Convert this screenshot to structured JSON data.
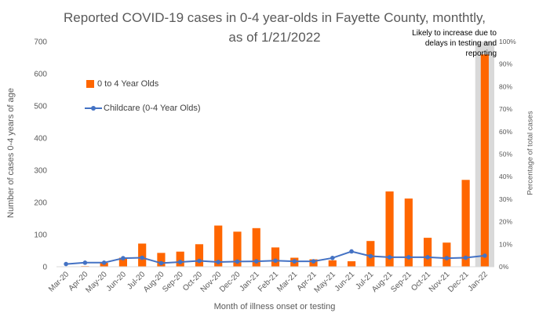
{
  "chart_data": {
    "type": "bar",
    "title": "Reported COVID-19 cases in 0-4 year-olds in Fayette County, monthtly, as of 1/21/2022",
    "xlabel": "Month of illness onset or testing",
    "ylabel": "Number of cases 0-4 years of age",
    "y2label": "Percentage of total cases",
    "ylim": [
      0,
      700
    ],
    "y2lim": [
      0,
      100
    ],
    "yticks": [
      "0",
      "100",
      "200",
      "300",
      "400",
      "500",
      "600",
      "700"
    ],
    "y2ticks": [
      "0%",
      "10%",
      "20%",
      "30%",
      "40%",
      "50%",
      "60%",
      "70%",
      "80%",
      "90%",
      "100%"
    ],
    "categories": [
      "Mar-20",
      "Apr-20",
      "May-20",
      "Jun-20",
      "Jul-20",
      "Aug-20",
      "Sep-20",
      "Oct-20",
      "Nov-20",
      "Dec-20",
      "Jan-21",
      "Feb-21",
      "Mar-21",
      "Apr-21",
      "May-21",
      "Jun-21",
      "Jul-21",
      "Aug-21",
      "Sep-21",
      "Oct-21",
      "Nov-21",
      "Dec-21",
      "Jan-22"
    ],
    "series": [
      {
        "name": "0 to 4 Year Olds",
        "type": "bar",
        "axis": "left",
        "color": "#ff6600",
        "values": [
          1,
          2,
          12,
          28,
          72,
          43,
          47,
          70,
          128,
          109,
          120,
          60,
          28,
          23,
          20,
          17,
          80,
          234,
          212,
          90,
          75,
          270,
          660
        ]
      },
      {
        "name": "Childcare (0-4 Year Olds)",
        "type": "line",
        "axis": "right",
        "color": "#4472c4",
        "values": [
          1.2,
          1.8,
          1.8,
          3.8,
          4.0,
          1.6,
          2.1,
          2.6,
          2.1,
          2.3,
          2.4,
          2.7,
          2.4,
          2.4,
          3.9,
          6.8,
          4.7,
          4.2,
          4.2,
          4.2,
          3.8,
          4.0,
          4.9
        ]
      }
    ],
    "highlight": {
      "category": "Jan-22",
      "color": "#d9d9d9",
      "annotation": "Likely to increase due to delays in testing and reporting"
    },
    "legend_position": "upper-left",
    "grid": false
  }
}
